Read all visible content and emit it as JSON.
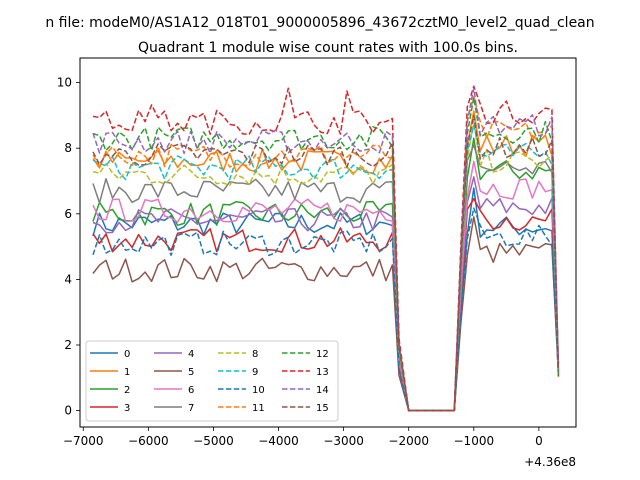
{
  "chart_data": {
    "type": "line",
    "supertitle": "n file: modeM0/AS1A12_018T01_9000005896_43672cztM0_level2_quad_clean",
    "title": "Quadrant 1 module wise count rates with 100.0s bins.",
    "xlabel": "",
    "ylabel": "",
    "x_offset_label": "+4.36e8",
    "xlim": [
      -7050,
      570
    ],
    "ylim": [
      -0.5,
      10.75
    ],
    "x_ticks": [
      -7000,
      -6000,
      -5000,
      -4000,
      -3000,
      -2000,
      -1000,
      0
    ],
    "x_tick_labels": [
      "−7000",
      "−6000",
      "−5000",
      "−4000",
      "−3000",
      "−2000",
      "−1000",
      "0"
    ],
    "y_ticks": [
      0,
      2,
      4,
      6,
      8,
      10
    ],
    "y_tick_labels": [
      "0",
      "2",
      "4",
      "6",
      "8",
      "10"
    ],
    "grid": false,
    "legend_position": "lower-left",
    "legend_columns": 4,
    "series": [
      {
        "name": "0",
        "color": "#1f77b4",
        "dash": "solid",
        "level": 5.7,
        "on_level": 5.6
      },
      {
        "name": "1",
        "color": "#ff7f0e",
        "dash": "solid",
        "level": 7.6,
        "on_level": 8.1
      },
      {
        "name": "2",
        "color": "#2ca02c",
        "dash": "solid",
        "level": 6.0,
        "on_level": 7.3
      },
      {
        "name": "3",
        "color": "#d62728",
        "dash": "solid",
        "level": 5.2,
        "on_level": 5.8
      },
      {
        "name": "4",
        "color": "#9467bd",
        "dash": "solid",
        "level": 5.8,
        "on_level": 6.2
      },
      {
        "name": "5",
        "color": "#8c564b",
        "dash": "solid",
        "level": 4.3,
        "on_level": 4.8
      },
      {
        "name": "6",
        "color": "#e377c2",
        "dash": "solid",
        "level": 6.1,
        "on_level": 6.8
      },
      {
        "name": "7",
        "color": "#7f7f7f",
        "dash": "solid",
        "level": 6.7,
        "on_level": 7.4
      },
      {
        "name": "8",
        "color": "#bcbd22",
        "dash": "dashed",
        "level": 7.2,
        "on_level": 7.6
      },
      {
        "name": "9",
        "color": "#17becf",
        "dash": "dashed",
        "level": 7.4,
        "on_level": 7.8
      },
      {
        "name": "10",
        "color": "#1f77b4",
        "dash": "dashed",
        "level": 5.1,
        "on_level": 5.3
      },
      {
        "name": "11",
        "color": "#ff7f0e",
        "dash": "dashed",
        "level": 7.8,
        "on_level": 8.5
      },
      {
        "name": "12",
        "color": "#2ca02c",
        "dash": "dashed",
        "level": 8.3,
        "on_level": 8.5
      },
      {
        "name": "13",
        "color": "#d62728",
        "dash": "dashed",
        "level": 8.8,
        "on_level": 9.1
      },
      {
        "name": "14",
        "color": "#9467bd",
        "dash": "dashed",
        "level": 8.2,
        "on_level": 8.7
      },
      {
        "name": "15",
        "color": "#8c564b",
        "dash": "dashed",
        "level": 7.8,
        "on_level": 8.0
      }
    ],
    "segments": {
      "first_on_x": [
        -6850,
        -2250
      ],
      "drop_end_x": -2000,
      "gap_x": [
        -2000,
        -1300
      ],
      "second_on_x": [
        -1100,
        300
      ],
      "bin_width": 100
    }
  }
}
